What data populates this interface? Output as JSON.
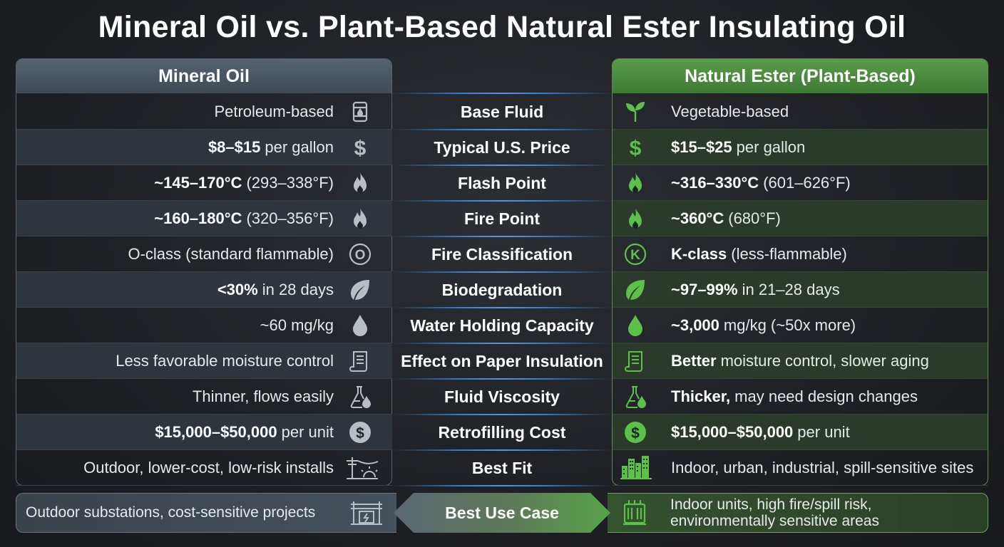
{
  "title": "Mineral Oil vs. Plant-Based Natural Ester Insulating Oil",
  "columns": {
    "left": "Mineral Oil",
    "right": "Natural Ester (Plant-Based)"
  },
  "colors": {
    "mineral_accent": "#56636f",
    "ester_accent": "#5b9a4c",
    "icon_grey": "#b8bec4",
    "icon_green": "#5cc04a",
    "separator_blue": "#3a8fe8"
  },
  "rows": [
    {
      "label": "Base Fluid",
      "left_bold": "",
      "left_rest": "Petroleum-based",
      "left_icon": "barrel-icon",
      "right_bold": "",
      "right_rest": "Vegetable-based",
      "right_icon": "leaf-sprout-icon"
    },
    {
      "label": "Typical U.S. Price",
      "left_bold": "$8–$15",
      "left_rest": "per gallon",
      "left_icon": "dollar-icon",
      "right_bold": "$15–$25",
      "right_rest": "per gallon",
      "right_icon": "dollar-icon"
    },
    {
      "label": "Flash Point",
      "left_bold": "~145–170°C",
      "left_rest": "(293–338°F)",
      "left_icon": "flame-icon",
      "right_bold": "~316–330°C",
      "right_rest": "(601–626°F)",
      "right_icon": "flame-icon"
    },
    {
      "label": "Fire Point",
      "left_bold": "~160–180°C",
      "left_rest": "(320–356°F)",
      "left_icon": "flame-icon",
      "right_bold": "~360°C",
      "right_rest": "(680°F)",
      "right_icon": "flame-icon"
    },
    {
      "label": "Fire Classification",
      "left_bold": "",
      "left_rest": "O-class (standard flammable)",
      "left_icon": "o-class-icon",
      "right_bold": "K-class",
      "right_rest": "(less-flammable)",
      "right_icon": "k-class-icon"
    },
    {
      "label": "Biodegradation",
      "left_bold": "<30%",
      "left_rest": "in 28 days",
      "left_icon": "leaf-icon",
      "right_bold": "~97–99%",
      "right_rest": "in 21–28 days",
      "right_icon": "leaf-icon"
    },
    {
      "label": "Water Holding Capacity",
      "left_bold": "",
      "left_rest": "~60 mg/kg",
      "left_icon": "droplet-icon",
      "right_bold": "~3,000",
      "right_rest": "mg/kg (~50x more)",
      "right_icon": "droplet-icon"
    },
    {
      "label": "Effect on Paper Insulation",
      "left_bold": "",
      "left_rest": "Less favorable moisture control",
      "left_icon": "scroll-icon",
      "right_bold": "Better",
      "right_rest": "moisture control, slower aging",
      "right_icon": "scroll-icon"
    },
    {
      "label": "Fluid Viscosity",
      "left_bold": "",
      "left_rest": "Thinner, flows easily",
      "left_icon": "flask-icon",
      "right_bold": "Thicker,",
      "right_rest": "may need design changes",
      "right_icon": "flask-icon"
    },
    {
      "label": "Retrofilling Cost",
      "left_bold": "$15,000–$50,000",
      "left_rest": "per unit",
      "left_icon": "coin-icon",
      "right_bold": "$15,000–$50,000",
      "right_rest": "per unit",
      "right_icon": "coin-icon"
    },
    {
      "label": "Best Fit",
      "left_bold": "",
      "left_rest": "Outdoor, lower-cost, low-risk installs",
      "left_icon": "power-pole-icon",
      "right_bold": "",
      "right_rest": "Indoor, urban, industrial, spill-sensitive sites",
      "right_icon": "city-icon"
    }
  ],
  "banner": {
    "label": "Best Use Case",
    "left": "Outdoor substations, cost-sensitive projects",
    "right_line1": "Indoor units, high fire/spill risk,",
    "right_line2": "environmentally sensitive areas",
    "left_icon": "substation-icon",
    "right_icon": "transformer-icon"
  }
}
